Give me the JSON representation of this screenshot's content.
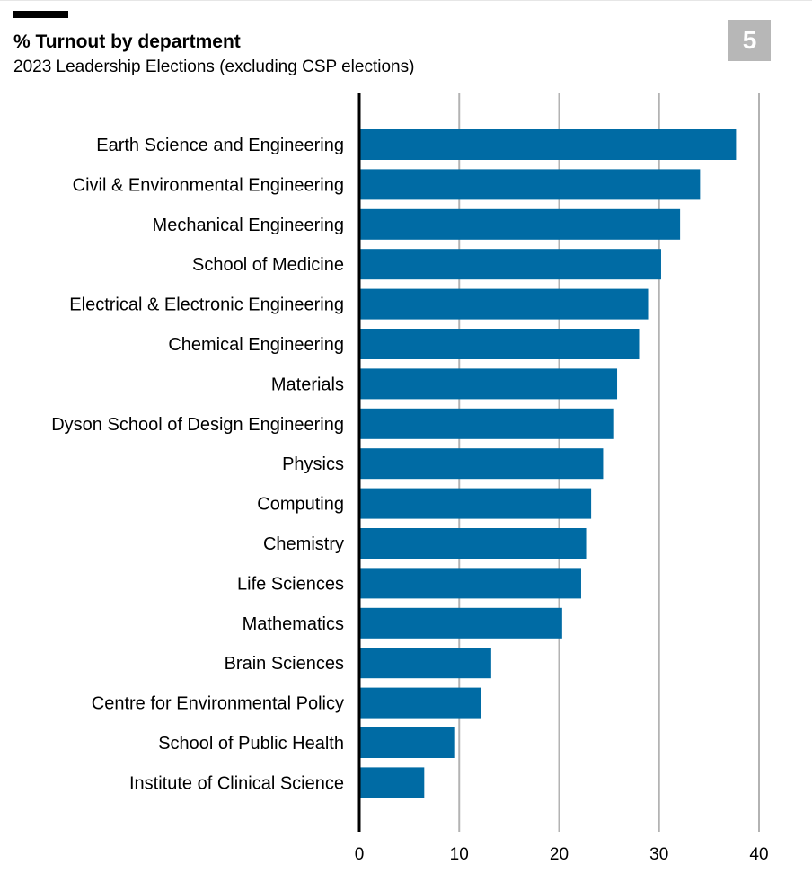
{
  "header": {
    "title": "% Turnout by department",
    "subtitle": "2023 Leadership Elections (excluding CSP elections)",
    "badge": "5"
  },
  "colors": {
    "bar": "#006ba4",
    "grid": "#b3b3b3",
    "axis": "#000000",
    "badge_bg": "#b7b7b7"
  },
  "chart_data": {
    "type": "bar",
    "orientation": "horizontal",
    "title": "% Turnout by department",
    "subtitle": "2023 Leadership Elections (excluding CSP elections)",
    "categories": [
      "Earth Science and Engineering",
      "Civil & Environmental Engineering",
      "Mechanical Engineering",
      "School of Medicine",
      "Electrical & Electronic Engineering",
      "Chemical Engineering",
      "Materials",
      "Dyson School of Design Engineering",
      "Physics",
      "Computing",
      "Chemistry",
      "Life Sciences",
      "Mathematics",
      "Brain Sciences",
      "Centre for Environmental Policy",
      "School of Public Health",
      "Institute of Clinical Science"
    ],
    "values": [
      37.7,
      34.1,
      32.1,
      30.2,
      28.9,
      28.0,
      25.8,
      25.5,
      24.4,
      23.2,
      22.7,
      22.2,
      20.3,
      13.2,
      12.2,
      9.5,
      6.5
    ],
    "xlim": [
      0,
      40
    ],
    "xticks": [
      0,
      10,
      20,
      30,
      40
    ],
    "grid": "vertical",
    "legend": "none"
  }
}
